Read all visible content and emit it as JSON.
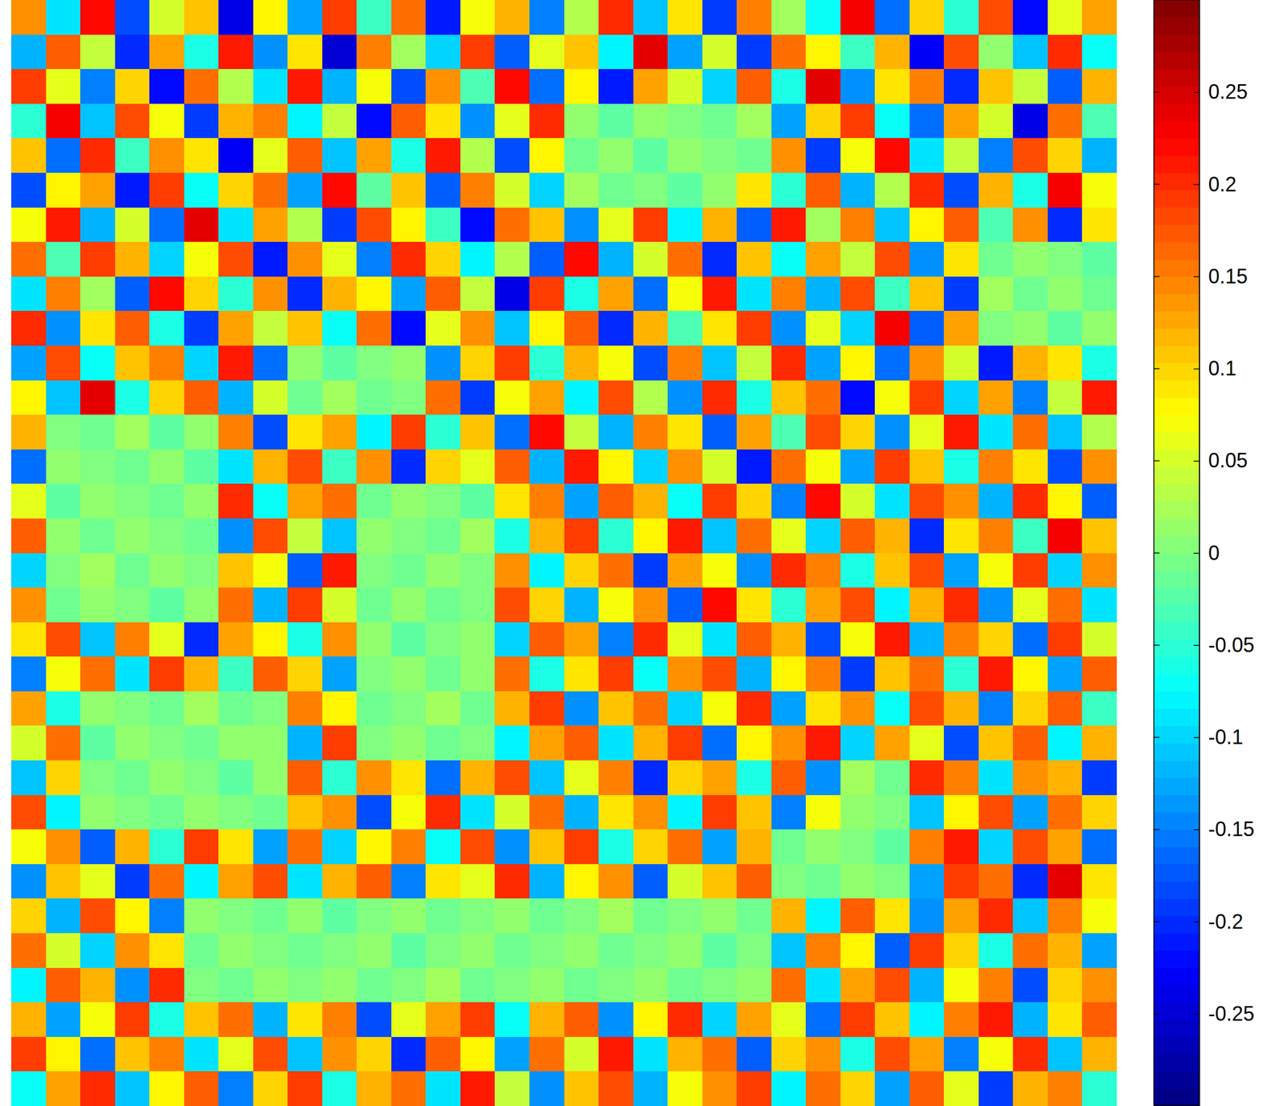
{
  "chart_data": {
    "type": "heatmap",
    "color": "jet",
    "tick_labels": false,
    "colorbar_range": [
      -0.3,
      0.3
    ],
    "colorbar_ticks": [
      -0.25,
      -0.2,
      -0.15,
      -0.1,
      -0.05,
      0,
      0.05,
      0.1,
      0.15,
      0.2,
      0.25
    ],
    "cells": [
      [
        0.14,
        -0.09,
        0.22,
        -0.18,
        0.05,
        0.11,
        -0.24,
        0.08,
        -0.13,
        0.19,
        -0.04,
        0.16,
        -0.21,
        0.07,
        0.12,
        -0.15,
        0.03,
        0.2,
        -0.11,
        0.09,
        -0.19,
        0.15,
        0.02,
        -0.07,
        0.23,
        -0.16,
        0.1,
        -0.05,
        0.18,
        -0.22,
        0.06,
        0.13
      ],
      [
        -0.12,
        0.17,
        0.04,
        -0.2,
        0.13,
        -0.06,
        0.21,
        -0.14,
        0.09,
        -0.25,
        0.15,
        0.02,
        -0.1,
        0.19,
        -0.17,
        0.06,
        0.11,
        -0.08,
        0.24,
        -0.13,
        0.05,
        -0.19,
        0.16,
        0.08,
        -0.04,
        0.12,
        -0.23,
        0.18,
        0.01,
        -0.11,
        0.2,
        -0.07
      ],
      [
        0.19,
        0.06,
        -0.15,
        0.1,
        -0.22,
        0.16,
        0.03,
        -0.09,
        0.21,
        -0.12,
        0.07,
        -0.18,
        0.14,
        -0.03,
        0.22,
        -0.16,
        0.08,
        -0.21,
        0.13,
        0.05,
        -0.1,
        0.17,
        -0.06,
        0.24,
        -0.14,
        0.09,
        0.15,
        -0.2,
        0.11,
        0.04,
        -0.17,
        0.12
      ],
      [
        -0.05,
        0.23,
        -0.11,
        0.18,
        0.07,
        -0.19,
        0.12,
        0.15,
        -0.08,
        0.04,
        -0.22,
        0.17,
        0.09,
        -0.14,
        0.06,
        0.2,
        0.01,
        -0.02,
        0.01,
        0.0,
        -0.01,
        0.02,
        -0.13,
        0.1,
        0.19,
        -0.07,
        -0.16,
        0.13,
        0.05,
        -0.24,
        0.16,
        -0.03
      ],
      [
        0.11,
        -0.16,
        0.2,
        -0.04,
        0.14,
        0.09,
        -0.23,
        0.06,
        0.17,
        -0.11,
        0.13,
        -0.06,
        0.21,
        0.03,
        -0.18,
        0.08,
        -0.01,
        0.01,
        -0.02,
        0.01,
        0.0,
        -0.01,
        0.14,
        -0.19,
        0.07,
        0.22,
        -0.09,
        0.04,
        -0.15,
        0.18,
        0.1,
        -0.12
      ],
      [
        -0.18,
        0.08,
        0.13,
        -0.21,
        0.19,
        -0.07,
        0.1,
        0.16,
        -0.13,
        0.22,
        -0.02,
        0.11,
        -0.17,
        0.15,
        0.05,
        -0.1,
        0.02,
        -0.01,
        0.0,
        -0.02,
        0.01,
        0.09,
        -0.05,
        0.17,
        -0.12,
        0.03,
        0.2,
        -0.18,
        0.12,
        -0.06,
        0.23,
        0.07
      ],
      [
        0.07,
        0.21,
        -0.12,
        0.05,
        -0.16,
        0.24,
        -0.09,
        0.13,
        0.03,
        -0.19,
        0.18,
        0.08,
        -0.04,
        -0.22,
        0.16,
        0.11,
        -0.14,
        0.06,
        0.19,
        -0.08,
        0.12,
        -0.17,
        0.21,
        0.02,
        0.15,
        -0.11,
        0.08,
        0.17,
        -0.03,
        0.14,
        -0.2,
        0.09
      ],
      [
        0.16,
        -0.03,
        0.19,
        0.12,
        -0.1,
        0.07,
        0.18,
        -0.21,
        0.14,
        0.06,
        -0.15,
        0.2,
        0.1,
        -0.08,
        0.03,
        -0.17,
        0.22,
        -0.12,
        0.05,
        0.16,
        -0.2,
        0.11,
        -0.07,
        0.13,
        0.04,
        0.18,
        -0.14,
        0.09,
        -0.01,
        0.01,
        0.0,
        -0.02
      ],
      [
        -0.09,
        0.15,
        0.02,
        -0.17,
        0.22,
        0.1,
        -0.05,
        0.14,
        -0.2,
        0.12,
        0.08,
        -0.13,
        0.17,
        0.04,
        -0.24,
        0.19,
        -0.06,
        0.13,
        -0.16,
        0.07,
        0.21,
        -0.09,
        0.15,
        -0.12,
        0.18,
        -0.04,
        0.11,
        -0.19,
        0.02,
        -0.01,
        0.01,
        -0.01
      ],
      [
        0.2,
        -0.14,
        0.09,
        0.17,
        -0.06,
        -0.19,
        0.13,
        0.04,
        0.11,
        -0.07,
        0.16,
        -0.22,
        0.06,
        0.14,
        -0.11,
        0.08,
        0.17,
        -0.2,
        0.12,
        -0.03,
        0.09,
        0.19,
        -0.14,
        0.06,
        -0.1,
        0.23,
        -0.17,
        0.13,
        0.0,
        0.01,
        -0.02,
        0.01
      ],
      [
        -0.13,
        0.18,
        -0.07,
        0.11,
        0.15,
        -0.1,
        0.21,
        -0.16,
        0.01,
        -0.02,
        0.0,
        0.01,
        -0.14,
        0.1,
        0.19,
        -0.05,
        0.12,
        0.07,
        -0.18,
        0.15,
        -0.11,
        0.04,
        0.2,
        -0.13,
        0.08,
        -0.16,
        0.14,
        0.05,
        -0.21,
        0.12,
        0.09,
        -0.06
      ],
      [
        0.08,
        -0.11,
        0.24,
        -0.06,
        0.1,
        0.17,
        -0.12,
        0.05,
        -0.01,
        0.02,
        -0.01,
        0.0,
        0.16,
        -0.19,
        0.07,
        0.13,
        -0.08,
        0.18,
        0.03,
        -0.14,
        0.2,
        -0.06,
        0.11,
        0.16,
        -0.22,
        0.07,
        0.19,
        -0.1,
        0.13,
        -0.15,
        0.04,
        0.21
      ],
      [
        0.12,
        0.0,
        -0.01,
        0.02,
        -0.02,
        0.01,
        0.15,
        -0.18,
        0.09,
        0.13,
        -0.08,
        0.19,
        -0.05,
        0.11,
        -0.16,
        0.22,
        0.04,
        -0.12,
        0.15,
        0.09,
        -0.17,
        0.13,
        -0.03,
        0.18,
        0.1,
        -0.14,
        0.06,
        0.21,
        -0.09,
        0.16,
        -0.11,
        0.03
      ],
      [
        -0.16,
        0.01,
        0.0,
        -0.01,
        0.01,
        -0.02,
        -0.09,
        0.12,
        0.18,
        -0.04,
        0.14,
        -0.2,
        0.1,
        0.06,
        0.17,
        -0.12,
        0.21,
        0.08,
        -0.1,
        0.14,
        0.05,
        -0.21,
        0.16,
        0.07,
        -0.13,
        0.19,
        0.11,
        -0.06,
        0.15,
        0.09,
        -0.18,
        0.14
      ],
      [
        0.06,
        -0.02,
        0.01,
        0.0,
        -0.01,
        0.01,
        0.2,
        -0.07,
        0.13,
        0.16,
        -0.01,
        0.01,
        0.0,
        -0.02,
        0.09,
        0.15,
        -0.13,
        0.17,
        0.12,
        -0.07,
        0.19,
        0.1,
        -0.15,
        0.22,
        0.05,
        -0.09,
        0.18,
        0.14,
        -0.12,
        0.2,
        0.08,
        -0.17
      ],
      [
        0.17,
        0.01,
        -0.01,
        0.01,
        0.0,
        -0.01,
        -0.14,
        0.18,
        0.04,
        -0.11,
        0.01,
        0.0,
        -0.01,
        0.02,
        -0.06,
        0.12,
        0.19,
        -0.05,
        0.08,
        0.21,
        -0.11,
        0.16,
        0.06,
        -0.1,
        0.17,
        0.12,
        -0.2,
        0.09,
        0.15,
        -0.04,
        0.23,
        0.11
      ],
      [
        -0.1,
        0.0,
        0.02,
        -0.01,
        0.01,
        0.0,
        0.11,
        0.07,
        -0.17,
        0.21,
        0.0,
        -0.01,
        0.01,
        0.0,
        0.14,
        -0.08,
        0.1,
        0.16,
        -0.19,
        0.13,
        0.07,
        -0.14,
        0.2,
        0.15,
        -0.06,
        0.11,
        0.18,
        -0.13,
        0.07,
        0.19,
        -0.1,
        0.14
      ],
      [
        0.14,
        -0.01,
        0.01,
        0.0,
        -0.02,
        0.01,
        0.16,
        -0.12,
        0.19,
        0.05,
        -0.01,
        0.01,
        -0.01,
        0.0,
        0.18,
        0.1,
        -0.12,
        0.07,
        0.14,
        -0.17,
        0.22,
        0.09,
        -0.05,
        0.13,
        0.18,
        -0.08,
        0.12,
        0.2,
        -0.14,
        0.06,
        0.16,
        -0.09
      ],
      [
        0.09,
        0.18,
        -0.11,
        0.15,
        0.06,
        -0.2,
        0.13,
        0.08,
        -0.06,
        0.14,
        0.01,
        -0.02,
        0.0,
        0.01,
        -0.1,
        0.17,
        0.13,
        -0.15,
        0.2,
        0.06,
        -0.09,
        0.17,
        0.12,
        -0.18,
        0.07,
        0.21,
        -0.12,
        0.15,
        0.1,
        -0.16,
        0.19,
        0.05
      ],
      [
        -0.15,
        0.07,
        0.16,
        -0.09,
        0.19,
        0.12,
        -0.04,
        0.17,
        0.1,
        -0.13,
        0.0,
        0.01,
        -0.01,
        0.01,
        0.16,
        -0.06,
        0.09,
        0.19,
        -0.07,
        0.14,
        0.18,
        -0.12,
        0.08,
        0.15,
        -0.19,
        0.11,
        0.16,
        -0.05,
        0.21,
        0.08,
        -0.13,
        0.17
      ],
      [
        0.13,
        -0.06,
        0.01,
        0.0,
        -0.01,
        0.02,
        -0.01,
        0.0,
        0.15,
        0.08,
        -0.01,
        0.0,
        0.02,
        -0.01,
        0.12,
        0.19,
        -0.14,
        0.11,
        0.16,
        -0.1,
        0.07,
        0.2,
        -0.13,
        0.09,
        0.14,
        -0.07,
        0.18,
        0.12,
        -0.15,
        0.1,
        0.17,
        -0.04
      ],
      [
        0.05,
        0.16,
        -0.02,
        0.01,
        0.0,
        -0.01,
        0.01,
        0.01,
        -0.12,
        0.19,
        0.0,
        0.01,
        -0.01,
        0.0,
        -0.08,
        0.13,
        0.17,
        -0.09,
        0.12,
        0.19,
        -0.16,
        0.08,
        0.14,
        0.21,
        -0.1,
        0.13,
        0.06,
        -0.18,
        0.11,
        0.17,
        -0.08,
        0.12
      ],
      [
        -0.11,
        0.1,
        0.0,
        -0.01,
        0.01,
        0.0,
        -0.02,
        0.01,
        0.17,
        -0.05,
        0.14,
        0.09,
        -0.16,
        0.12,
        0.18,
        -0.11,
        0.06,
        0.15,
        -0.2,
        0.1,
        0.13,
        -0.06,
        0.17,
        -0.14,
        0.02,
        -0.01,
        0.2,
        0.15,
        -0.09,
        0.14,
        0.12,
        -0.19
      ],
      [
        0.18,
        -0.08,
        0.01,
        0.0,
        -0.01,
        0.01,
        0.0,
        -0.01,
        0.11,
        0.14,
        -0.18,
        0.07,
        0.2,
        -0.09,
        0.05,
        0.16,
        -0.12,
        0.09,
        0.14,
        -0.08,
        0.19,
        0.11,
        -0.15,
        0.07,
        0.01,
        0.0,
        -0.11,
        0.08,
        0.18,
        -0.13,
        0.16,
        0.1
      ],
      [
        0.07,
        0.14,
        -0.17,
        0.12,
        -0.05,
        0.19,
        0.09,
        -0.13,
        0.16,
        -0.1,
        0.08,
        0.15,
        -0.07,
        0.18,
        -0.14,
        0.11,
        0.19,
        -0.06,
        0.1,
        0.16,
        -0.13,
        0.12,
        -0.01,
        0.01,
        0.0,
        -0.02,
        0.15,
        0.21,
        -0.1,
        0.18,
        0.13,
        -0.16
      ],
      [
        -0.14,
        0.11,
        0.06,
        -0.19,
        0.16,
        -0.08,
        0.13,
        0.18,
        -0.09,
        0.12,
        0.17,
        -0.15,
        0.09,
        0.06,
        0.2,
        -0.12,
        0.08,
        0.14,
        -0.17,
        0.05,
        0.11,
        0.17,
        0.0,
        -0.01,
        0.01,
        0.0,
        -0.13,
        0.19,
        0.16,
        -0.2,
        0.24,
        0.09
      ],
      [
        0.1,
        -0.12,
        0.18,
        0.08,
        -0.15,
        0.01,
        0.0,
        -0.01,
        0.01,
        -0.02,
        0.0,
        0.01,
        -0.01,
        0.0,
        0.01,
        -0.01,
        0.0,
        0.02,
        -0.01,
        0.0,
        0.01,
        -0.01,
        0.12,
        -0.08,
        0.17,
        0.09,
        -0.14,
        0.13,
        0.2,
        -0.11,
        0.15,
        0.07
      ],
      [
        0.16,
        0.05,
        -0.1,
        0.14,
        0.09,
        -0.01,
        0.01,
        0.0,
        -0.01,
        0.0,
        0.01,
        -0.02,
        0.0,
        0.01,
        -0.01,
        0.0,
        0.01,
        -0.01,
        0.0,
        0.01,
        -0.02,
        0.0,
        -0.11,
        0.15,
        0.08,
        -0.17,
        0.19,
        0.1,
        -0.06,
        0.16,
        0.12,
        -0.13
      ],
      [
        -0.08,
        0.17,
        0.12,
        -0.14,
        0.2,
        0.0,
        -0.01,
        0.01,
        0.0,
        0.01,
        -0.01,
        0.0,
        0.02,
        -0.01,
        0.0,
        0.01,
        -0.01,
        0.0,
        0.01,
        -0.01,
        0.0,
        0.01,
        0.16,
        -0.09,
        0.13,
        0.18,
        -0.12,
        0.07,
        0.15,
        -0.18,
        0.1,
        0.14
      ],
      [
        0.12,
        -0.13,
        0.07,
        0.19,
        -0.06,
        0.11,
        0.16,
        -0.12,
        0.09,
        0.15,
        -0.18,
        0.06,
        0.13,
        0.19,
        -0.07,
        0.12,
        0.17,
        -0.14,
        0.08,
        0.2,
        -0.1,
        0.13,
        0.06,
        -0.16,
        0.19,
        0.11,
        -0.08,
        0.15,
        0.21,
        -0.12,
        0.09,
        0.17
      ],
      [
        0.19,
        0.08,
        -0.16,
        0.11,
        0.15,
        -0.09,
        0.06,
        0.18,
        -0.11,
        0.14,
        0.1,
        -0.2,
        0.17,
        0.08,
        -0.13,
        0.16,
        0.05,
        0.21,
        -0.09,
        0.12,
        0.16,
        -0.17,
        0.1,
        0.14,
        -0.06,
        0.18,
        0.13,
        -0.15,
        0.07,
        0.2,
        -0.11,
        0.12
      ],
      [
        -0.07,
        0.13,
        0.2,
        -0.11,
        0.08,
        0.17,
        -0.15,
        0.1,
        0.19,
        -0.06,
        0.12,
        0.16,
        -0.09,
        0.21,
        0.04,
        -0.14,
        0.11,
        0.18,
        -0.12,
        0.07,
        0.14,
        0.19,
        -0.08,
        0.16,
        0.1,
        -0.13,
        0.17,
        0.06,
        -0.19,
        0.12,
        0.15,
        -0.05
      ]
    ]
  }
}
